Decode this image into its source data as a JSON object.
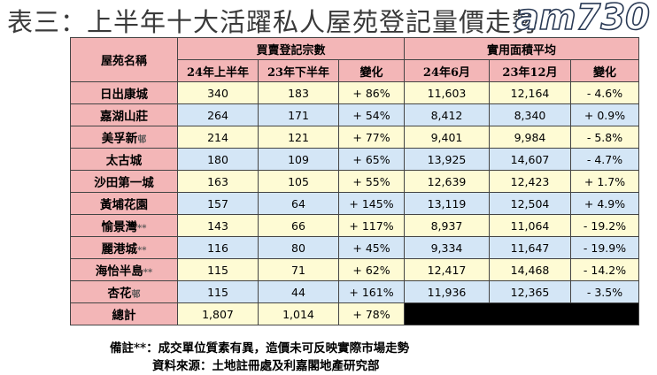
{
  "title": "表三：上半年十大活躍私人屋苑登記量價走勢",
  "watermark": "am730",
  "headers": {
    "estate": "屋苑名稱",
    "volume_group": "買賣登記宗數",
    "price_group": "實用面積平均",
    "vol_h1_24": "24年上半年",
    "vol_h2_23": "23年下半年",
    "vol_change": "變化",
    "price_jun24": "24年6月",
    "price_dec23": "23年12月",
    "price_change": "變化"
  },
  "rows": [
    {
      "name": "日出康城",
      "mark": "",
      "v1": "340",
      "v2": "183",
      "vc": "+ 86%",
      "p1": "11,603",
      "p2": "12,164",
      "pc": "- 4.6%"
    },
    {
      "name": "嘉湖山莊",
      "mark": "",
      "v1": "264",
      "v2": "171",
      "vc": "+ 54%",
      "p1": "8,412",
      "p2": "8,340",
      "pc": "+ 0.9%"
    },
    {
      "name": "美孚新",
      "mark": "邨",
      "v1": "214",
      "v2": "121",
      "vc": "+ 77%",
      "p1": "9,401",
      "p2": "9,984",
      "pc": "- 5.8%"
    },
    {
      "name": "太古城",
      "mark": "",
      "v1": "180",
      "v2": "109",
      "vc": "+ 65%",
      "p1": "13,925",
      "p2": "14,607",
      "pc": "- 4.7%"
    },
    {
      "name": "沙田第一城",
      "mark": "",
      "v1": "163",
      "v2": "105",
      "vc": "+ 55%",
      "p1": "12,639",
      "p2": "12,423",
      "pc": "+ 1.7%"
    },
    {
      "name": "黃埔花園",
      "mark": "",
      "v1": "157",
      "v2": "64",
      "vc": "+ 145%",
      "p1": "13,119",
      "p2": "12,504",
      "pc": "+ 4.9%"
    },
    {
      "name": "愉景灣",
      "mark": "**",
      "v1": "143",
      "v2": "66",
      "vc": "+ 117%",
      "p1": "8,937",
      "p2": "11,064",
      "pc": "- 19.2%"
    },
    {
      "name": "麗港城",
      "mark": "**",
      "v1": "116",
      "v2": "80",
      "vc": "+ 45%",
      "p1": "9,334",
      "p2": "11,647",
      "pc": "- 19.9%"
    },
    {
      "name": "海怡半島",
      "mark": "**",
      "v1": "115",
      "v2": "71",
      "vc": "+ 62%",
      "p1": "12,417",
      "p2": "14,468",
      "pc": "- 14.2%"
    },
    {
      "name": "杏花",
      "mark": "邨",
      "v1": "115",
      "v2": "44",
      "vc": "+ 161%",
      "p1": "11,936",
      "p2": "12,365",
      "pc": "- 3.5%"
    }
  ],
  "total": {
    "name": "總計",
    "v1": "1,807",
    "v2": "1,014",
    "vc": "+ 78%"
  },
  "notes": {
    "remark": "備註**：成交單位質素有異，造價未可反映實際市場走勢",
    "source": "資料來源：土地註冊處及利嘉閣地產研究部"
  },
  "colors": {
    "header": "#f3b6b7",
    "row_yellow": "#fefbd4",
    "row_blue": "#d4e6f6"
  }
}
